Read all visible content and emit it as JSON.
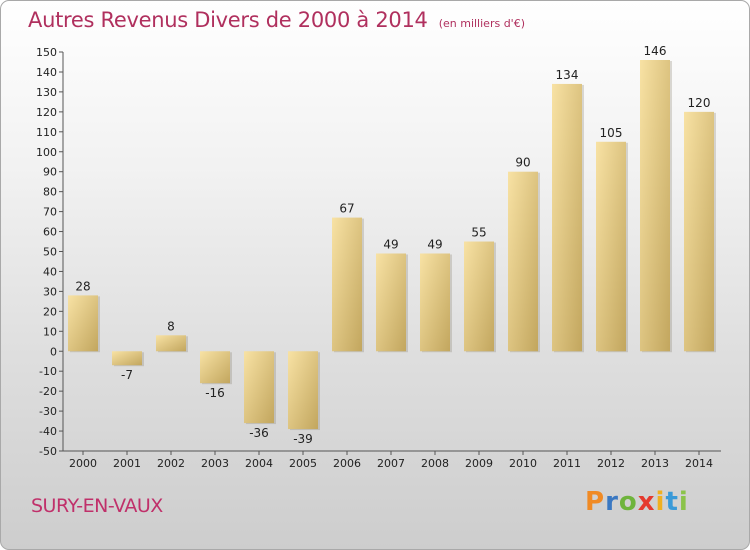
{
  "header": {
    "title": "Autres Revenus Divers de 2000 à 2014",
    "subtitle": "(en milliers d'€)"
  },
  "footer": {
    "commune": "SURY-EN-VAUX",
    "logo": "Proxiti"
  },
  "colors": {
    "title": "#b0305e",
    "bar_light": "#f6dc98",
    "bar_dark": "#c6ab64",
    "logo_letters": [
      "#f08a24",
      "#3a78c2",
      "#6fb43c",
      "#e53a2e",
      "#f0b020",
      "#3a9ad8",
      "#8bc34a"
    ]
  },
  "chart_data": {
    "type": "bar",
    "title": "Autres Revenus Divers de 2000 à 2014",
    "subtitle": "(en milliers d'€)",
    "categories": [
      "2000",
      "2001",
      "2002",
      "2003",
      "2004",
      "2005",
      "2006",
      "2007",
      "2008",
      "2009",
      "2010",
      "2011",
      "2012",
      "2013",
      "2014"
    ],
    "values": [
      28,
      -7,
      8,
      -16,
      -36,
      -39,
      67,
      49,
      49,
      55,
      90,
      134,
      105,
      146,
      120
    ],
    "value_labels": [
      "28",
      "-7",
      "8",
      "-16",
      "-36",
      "-39",
      "67",
      "49",
      "49",
      "55",
      "90",
      "134",
      "105",
      "146",
      "120"
    ],
    "ylim": [
      -50,
      150
    ],
    "yticks": [
      150,
      140,
      130,
      120,
      110,
      100,
      90,
      80,
      70,
      60,
      50,
      40,
      30,
      20,
      10,
      0,
      -10,
      -20,
      -30,
      -40,
      -50
    ],
    "grid": false,
    "legend": "none"
  }
}
